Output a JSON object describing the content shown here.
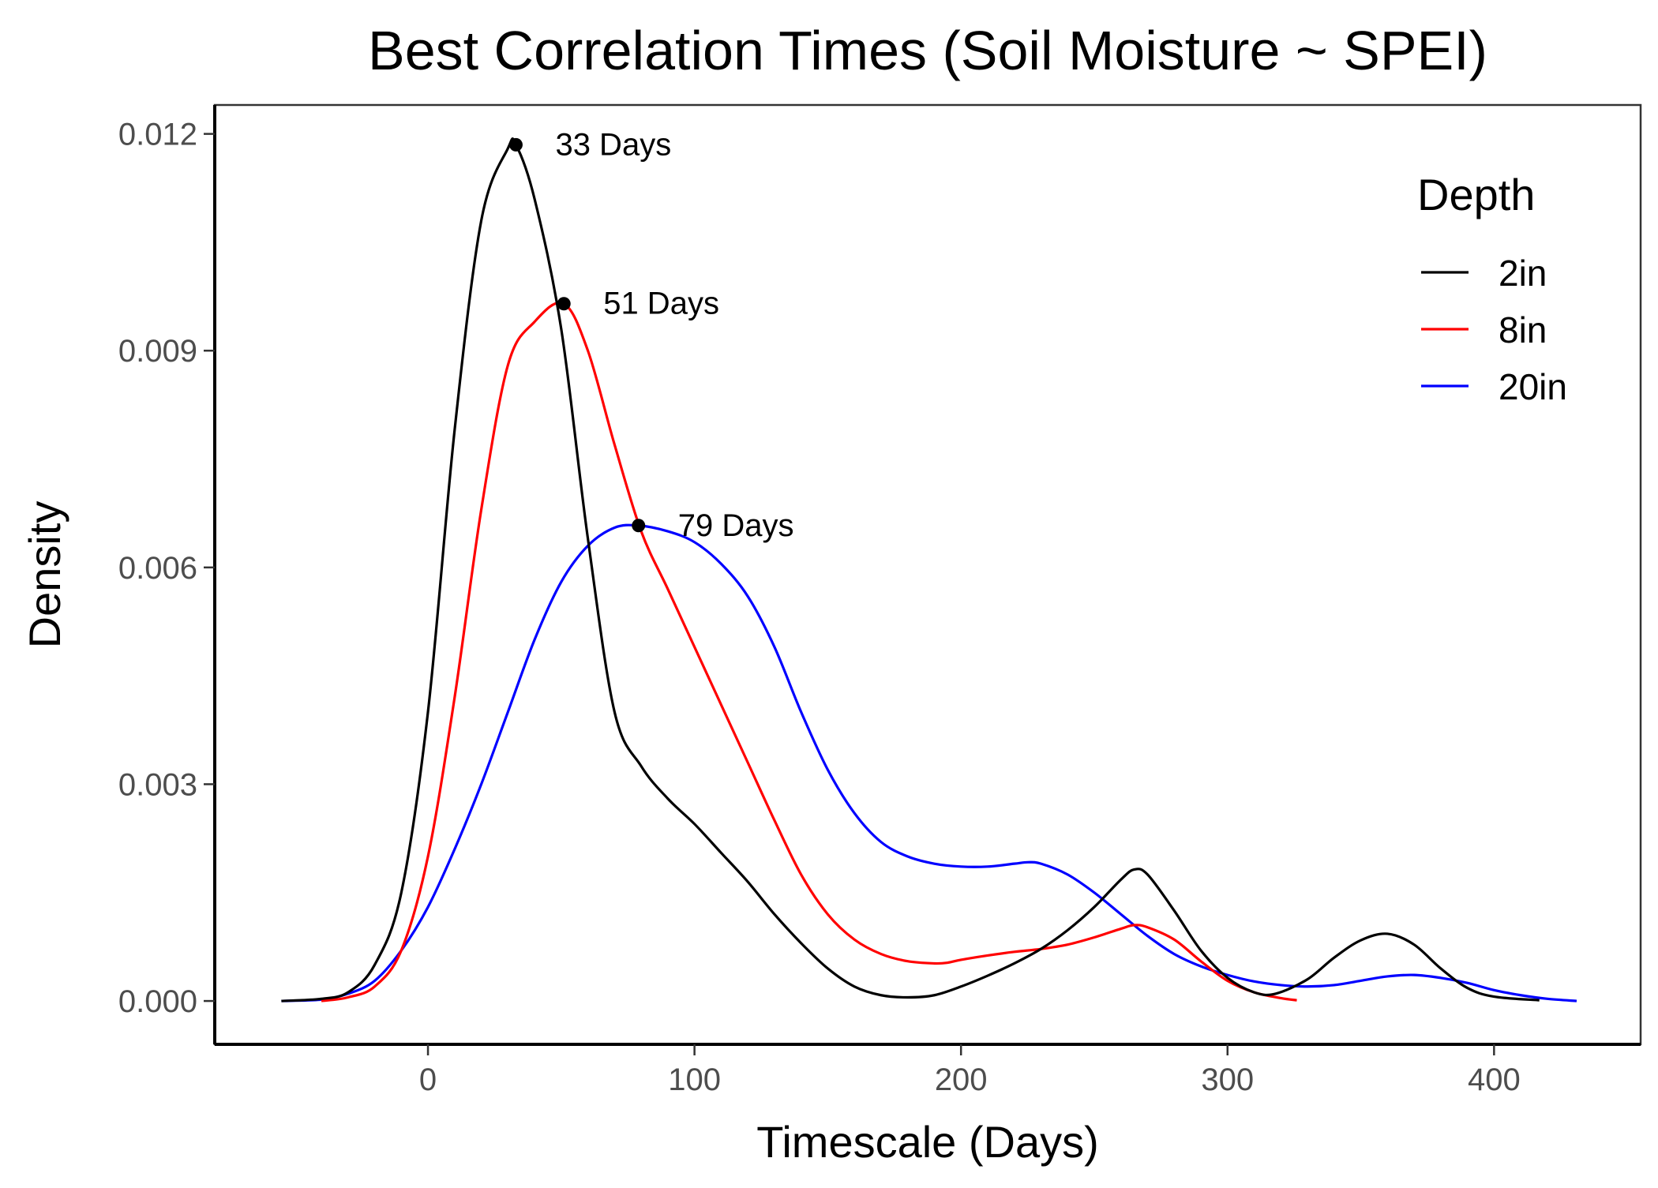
{
  "chart_data": {
    "type": "line",
    "title": "Best Correlation Times (Soil Moisture ~ SPEI)",
    "xlabel": "Timescale (Days)",
    "ylabel": "Density",
    "xlim": [
      -80,
      455
    ],
    "ylim": [
      -0.0006,
      0.0124
    ],
    "x_ticks": [
      0,
      100,
      200,
      300,
      400
    ],
    "x_tick_labels": [
      "0",
      "100",
      "200",
      "300",
      "400"
    ],
    "y_ticks": [
      0,
      0.003,
      0.006,
      0.009,
      0.012
    ],
    "y_tick_labels": [
      "0.000",
      "0.003",
      "0.006",
      "0.009",
      "0.012"
    ],
    "grid": false,
    "legend": {
      "title": "Depth",
      "position": "top-right"
    },
    "series": [
      {
        "name": "2in",
        "color": "#000000",
        "x": [
          -55,
          -40,
          -30,
          -20,
          -10,
          0,
          10,
          20,
          30,
          33,
          40,
          50,
          60,
          70,
          80,
          90,
          100,
          110,
          120,
          130,
          140,
          150,
          160,
          170,
          180,
          190,
          200,
          210,
          220,
          230,
          240,
          250,
          260,
          265,
          270,
          280,
          290,
          300,
          310,
          318,
          330,
          340,
          350,
          360,
          370,
          380,
          390,
          400,
          417
        ],
        "y": [
          0.0,
          3e-05,
          0.00012,
          0.0005,
          0.0015,
          0.004,
          0.0079,
          0.0108,
          0.0118,
          0.01185,
          0.0111,
          0.0093,
          0.0064,
          0.004,
          0.00325,
          0.0028,
          0.00245,
          0.00205,
          0.00165,
          0.0012,
          0.0008,
          0.00045,
          0.0002,
          8e-05,
          5e-05,
          8e-05,
          0.0002,
          0.00035,
          0.00052,
          0.00072,
          0.00098,
          0.0013,
          0.00168,
          0.00182,
          0.00175,
          0.00125,
          0.0007,
          0.00032,
          0.00012,
          0.0001,
          0.0003,
          0.0006,
          0.00084,
          0.00093,
          0.00078,
          0.00045,
          0.00018,
          6e-05,
          1e-05
        ]
      },
      {
        "name": "8in",
        "color": "#ff0000",
        "x": [
          -40,
          -30,
          -20,
          -10,
          0,
          10,
          20,
          30,
          40,
          51,
          60,
          70,
          80,
          90,
          100,
          110,
          120,
          130,
          140,
          150,
          160,
          170,
          180,
          190,
          195,
          200,
          210,
          220,
          230,
          240,
          250,
          260,
          265,
          270,
          280,
          290,
          300,
          310,
          320,
          326
        ],
        "y": [
          0.0,
          5e-05,
          0.0002,
          0.0007,
          0.002,
          0.0042,
          0.0068,
          0.0088,
          0.0094,
          0.00965,
          0.009,
          0.0077,
          0.0065,
          0.0057,
          0.0049,
          0.0041,
          0.0033,
          0.0025,
          0.00175,
          0.0012,
          0.00085,
          0.00065,
          0.00055,
          0.00052,
          0.00053,
          0.00057,
          0.00063,
          0.00068,
          0.00072,
          0.00078,
          0.00088,
          0.001,
          0.00105,
          0.00102,
          0.00085,
          0.00055,
          0.00028,
          0.00012,
          4e-05,
          1e-05
        ]
      },
      {
        "name": "20in",
        "color": "#0000ff",
        "x": [
          -55,
          -40,
          -30,
          -20,
          -10,
          0,
          10,
          20,
          30,
          40,
          50,
          60,
          70,
          79,
          90,
          100,
          110,
          120,
          130,
          140,
          150,
          160,
          170,
          180,
          190,
          200,
          210,
          220,
          225,
          230,
          240,
          250,
          260,
          270,
          280,
          290,
          300,
          310,
          320,
          330,
          340,
          350,
          360,
          370,
          380,
          390,
          400,
          410,
          420,
          431
        ],
        "y": [
          0.0,
          2e-05,
          0.0001,
          0.00028,
          0.0007,
          0.0013,
          0.0021,
          0.003,
          0.004,
          0.005,
          0.0058,
          0.0063,
          0.00655,
          0.00658,
          0.0065,
          0.00635,
          0.00605,
          0.0056,
          0.0049,
          0.004,
          0.0032,
          0.0026,
          0.0022,
          0.002,
          0.0019,
          0.00186,
          0.00186,
          0.0019,
          0.00192,
          0.0019,
          0.00175,
          0.0015,
          0.0012,
          0.0009,
          0.00065,
          0.00048,
          0.00036,
          0.00027,
          0.00022,
          0.0002,
          0.00022,
          0.00028,
          0.00034,
          0.00036,
          0.00032,
          0.00025,
          0.00015,
          8e-05,
          3e-05,
          0.0
        ]
      }
    ],
    "annotations": [
      {
        "x": 33,
        "y": 0.01185,
        "text": "33 Days"
      },
      {
        "x": 51,
        "y": 0.00965,
        "text": "51 Days"
      },
      {
        "x": 79,
        "y": 0.00658,
        "text": "79 Days"
      }
    ]
  }
}
